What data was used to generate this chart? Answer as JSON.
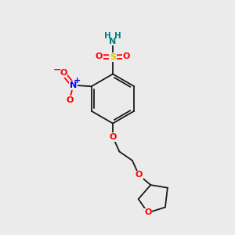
{
  "bg_color": "#ebebeb",
  "bond_color": "#1a1a1a",
  "atom_colors": {
    "S": "#cccc00",
    "O": "#ff0000",
    "N_sulfonamide": "#008080",
    "N_nitro": "#0000ff",
    "H": "#008080",
    "C": "#1a1a1a"
  },
  "figsize": [
    3.0,
    3.0
  ],
  "dpi": 100
}
